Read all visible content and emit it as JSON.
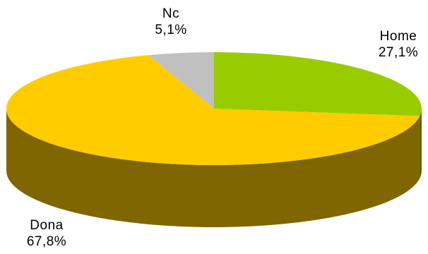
{
  "chart_data": {
    "type": "pie",
    "style": "3d",
    "title": "",
    "slices": [
      {
        "label": "Home",
        "value": 27.1,
        "value_label": "27,1%",
        "color": "#99cc00",
        "side_color": "#4d6600"
      },
      {
        "label": "Dona",
        "value": 67.8,
        "value_label": "67,8%",
        "color": "#ffcc00",
        "side_color": "#806600"
      },
      {
        "label": "Nc",
        "value": 5.1,
        "value_label": "5,1%",
        "color": "#c0c0c0",
        "side_color": "#606060"
      }
    ]
  }
}
